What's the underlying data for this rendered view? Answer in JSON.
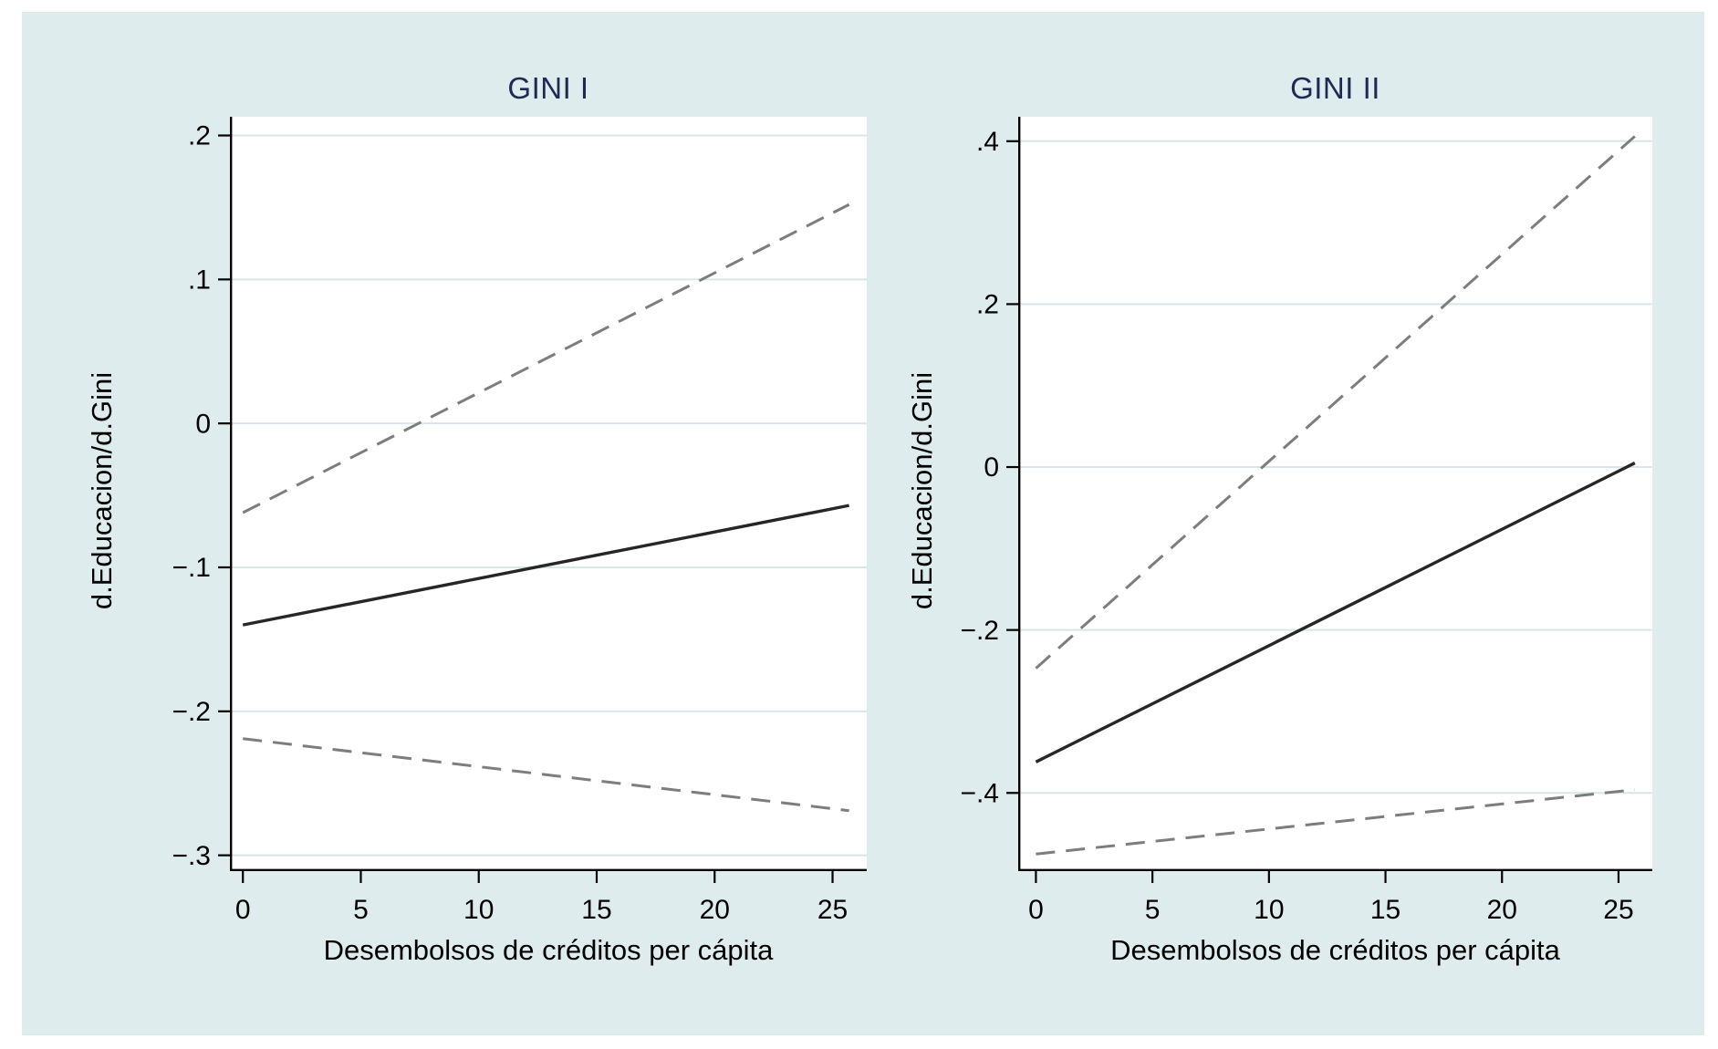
{
  "page": {
    "background_color": "#ffffff",
    "canvas_color": "#dfecee",
    "plot_background_color": "#ffffff",
    "gridline_color": "#d8e6e9",
    "axis_color": "#000000",
    "title_color": "#1f2a52",
    "solid_line_color": "#262626",
    "dashed_line_color": "#7d7d7d"
  },
  "chart_data": [
    {
      "type": "line",
      "title": "GINI I",
      "xlabel": "Desembolsos de créditos per cápita",
      "ylabel": "d.Educacion/d.Gini",
      "grid": "horizontal",
      "legend": "none",
      "xlim": [
        -0.55,
        26.45
      ],
      "ylim": [
        -0.311,
        0.213
      ],
      "xticks": [
        0,
        5,
        10,
        15,
        20,
        25
      ],
      "xtick_labels": [
        "0",
        "5",
        "10",
        "15",
        "20",
        "25"
      ],
      "yticks": [
        0.2,
        0.1,
        0,
        -0.1,
        -0.2,
        -0.3
      ],
      "ytick_labels": [
        ".2",
        ".1",
        "0",
        "−.1",
        "−.2",
        "−.3"
      ],
      "series": [
        {
          "name": "ci-upper",
          "style": "dashed",
          "color": "#7d7d7d",
          "points": [
            [
              0,
              -0.062
            ],
            [
              25.7,
              0.152
            ]
          ]
        },
        {
          "name": "estimate",
          "style": "solid",
          "color": "#262626",
          "points": [
            [
              0,
              -0.14
            ],
            [
              25.7,
              -0.057
            ]
          ]
        },
        {
          "name": "ci-lower",
          "style": "dashed",
          "color": "#7d7d7d",
          "points": [
            [
              0,
              -0.219
            ],
            [
              25.7,
              -0.269
            ]
          ]
        }
      ]
    },
    {
      "type": "line",
      "title": "GINI II",
      "xlabel": "Desembolsos de créditos per cápita",
      "ylabel": "d.Educacion/d.Gini",
      "grid": "horizontal",
      "legend": "none",
      "xlim": [
        -0.76,
        26.45
      ],
      "ylim": [
        -0.496,
        0.43
      ],
      "xticks": [
        0,
        5,
        10,
        15,
        20,
        25
      ],
      "xtick_labels": [
        "0",
        "5",
        "10",
        "15",
        "20",
        "25"
      ],
      "yticks": [
        0.4,
        0.2,
        0,
        -0.2,
        -0.4
      ],
      "ytick_labels": [
        ".4",
        ".2",
        "0",
        "−.2",
        "−.4"
      ],
      "series": [
        {
          "name": "ci-upper",
          "style": "dashed",
          "color": "#7d7d7d",
          "points": [
            [
              0,
              -0.247
            ],
            [
              25.7,
              0.406
            ]
          ]
        },
        {
          "name": "estimate",
          "style": "solid",
          "color": "#262626",
          "points": [
            [
              0,
              -0.362
            ],
            [
              25.7,
              0.005
            ]
          ]
        },
        {
          "name": "ci-lower",
          "style": "dashed",
          "color": "#7d7d7d",
          "points": [
            [
              0,
              -0.475
            ],
            [
              25.7,
              -0.396
            ]
          ]
        }
      ]
    }
  ]
}
